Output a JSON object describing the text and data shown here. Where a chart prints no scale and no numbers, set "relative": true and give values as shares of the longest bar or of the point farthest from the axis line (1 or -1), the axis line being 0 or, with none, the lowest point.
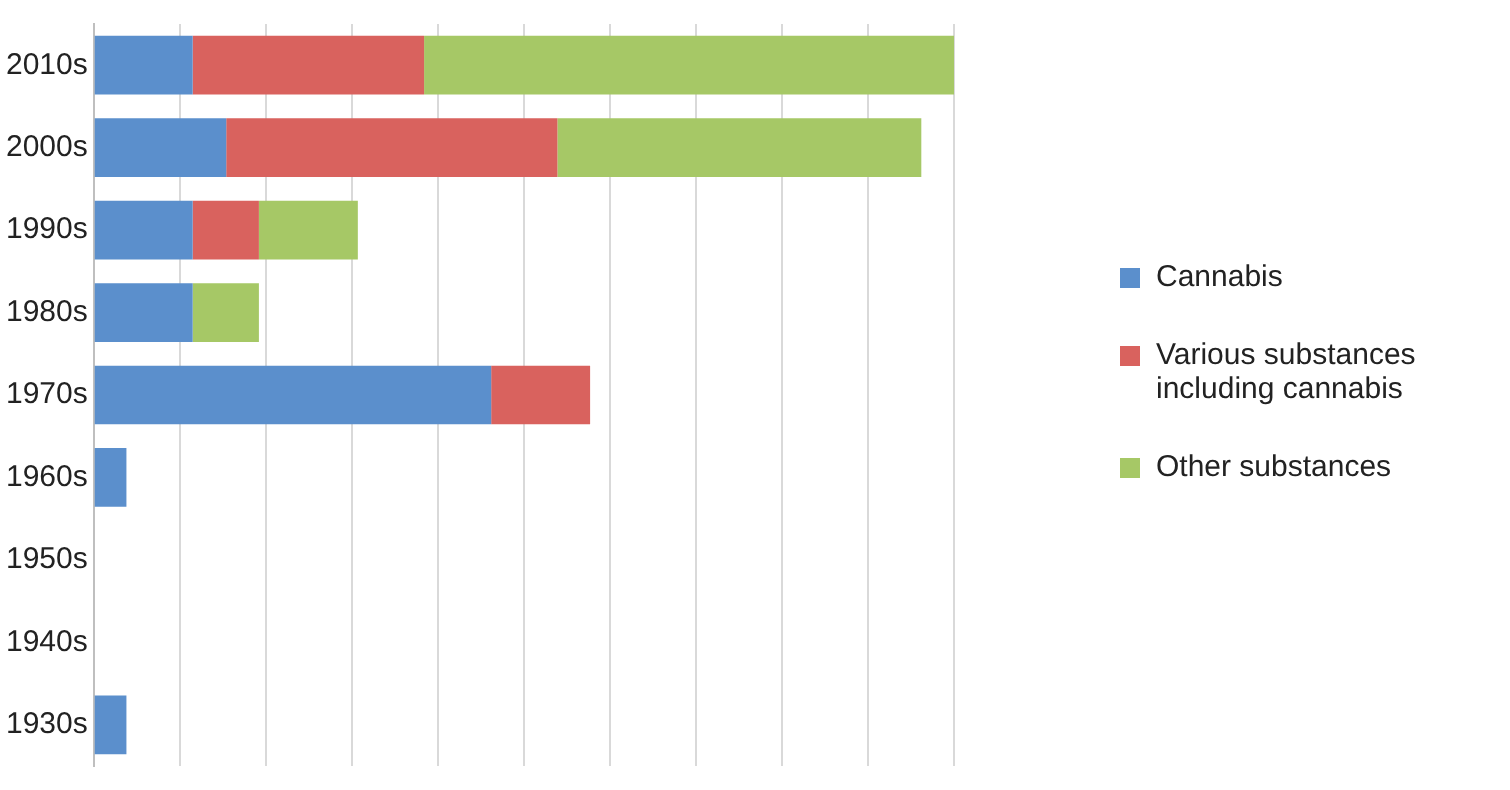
{
  "chart_data": {
    "type": "bar",
    "orientation": "horizontal",
    "stacked": true,
    "relative": true,
    "grid": "x",
    "legend": "right",
    "categories": [
      "2010s",
      "2000s",
      "1990s",
      "1980s",
      "1970s",
      "1960s",
      "1950s",
      "1940s",
      "1930s"
    ],
    "series": [
      {
        "name": "Cannabis",
        "color": "#5b8fcc",
        "values": [
          0.115,
          0.154,
          0.115,
          0.115,
          0.462,
          0.038,
          0,
          0,
          0.038
        ]
      },
      {
        "name": "Various substances including cannabis",
        "color": "#d9625e",
        "values": [
          0.269,
          0.385,
          0.077,
          0,
          0.115,
          0,
          0,
          0,
          0
        ]
      },
      {
        "name": "Other substances",
        "color": "#a6c866",
        "values": [
          0.616,
          0.423,
          0.115,
          0.077,
          0,
          0,
          0,
          0,
          0
        ]
      }
    ]
  }
}
